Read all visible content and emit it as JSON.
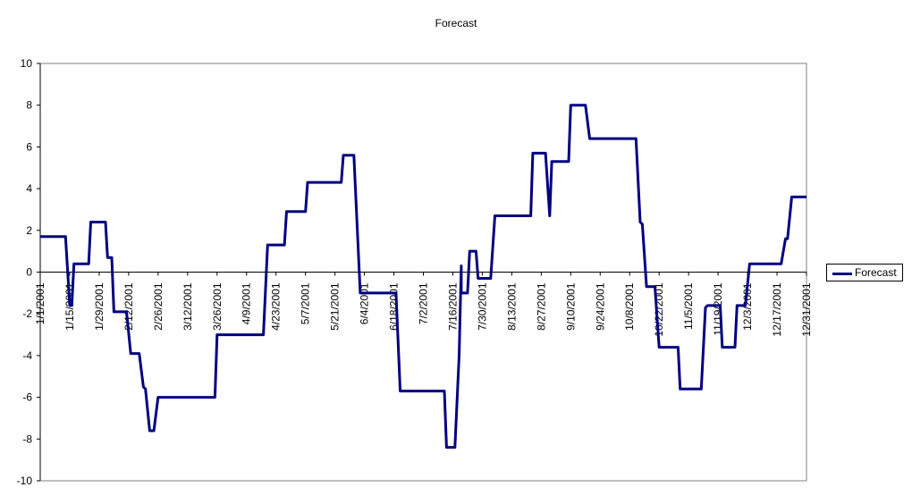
{
  "chart_data": {
    "type": "line",
    "title": "Forecast",
    "xlabel": "",
    "ylabel": "",
    "ylim": [
      -10,
      10
    ],
    "y_ticks": [
      "10",
      "8",
      "6",
      "4",
      "2",
      "0",
      "-2",
      "-4",
      "-6",
      "-8",
      "-10"
    ],
    "x_range": [
      "2001-01-01",
      "2001-12-31"
    ],
    "x_tick_labels": [
      "1/1/2001",
      "1/15/2001",
      "1/29/2001",
      "2/12/2001",
      "2/26/2001",
      "3/12/2001",
      "3/26/2001",
      "4/9/2001",
      "4/23/2001",
      "5/7/2001",
      "5/21/2001",
      "6/4/2001",
      "6/18/2001",
      "7/2/2001",
      "7/16/2001",
      "7/30/2001",
      "8/13/2001",
      "8/27/2001",
      "9/10/2001",
      "9/24/2001",
      "10/8/2001",
      "10/22/2001",
      "11/5/2001",
      "11/19/2001",
      "12/3/2001",
      "12/17/2001",
      "12/31/2001"
    ],
    "grid": false,
    "legend_position": "right",
    "colors": {
      "series": "#000080",
      "axis": "#000000",
      "plot_border": "#808080"
    },
    "series": [
      {
        "name": "Forecast",
        "points": [
          [
            "2001-01-01",
            1.7
          ],
          [
            "2001-01-13",
            1.7
          ],
          [
            "2001-01-15",
            -1.6
          ],
          [
            "2001-01-16",
            -1.6
          ],
          [
            "2001-01-17",
            0.4
          ],
          [
            "2001-01-24",
            0.4
          ],
          [
            "2001-01-25",
            2.4
          ],
          [
            "2001-02-01",
            2.4
          ],
          [
            "2001-02-02",
            0.7
          ],
          [
            "2001-02-04",
            0.7
          ],
          [
            "2001-02-05",
            -1.9
          ],
          [
            "2001-02-11",
            -1.9
          ],
          [
            "2001-02-13",
            -3.9
          ],
          [
            "2001-02-17",
            -3.9
          ],
          [
            "2001-02-19",
            -5.5
          ],
          [
            "2001-02-20",
            -5.6
          ],
          [
            "2001-02-22",
            -7.6
          ],
          [
            "2001-02-24",
            -7.6
          ],
          [
            "2001-02-26",
            -6.0
          ],
          [
            "2001-03-25",
            -6.0
          ],
          [
            "2001-03-26",
            -3.0
          ],
          [
            "2001-04-17",
            -3.0
          ],
          [
            "2001-04-19",
            1.3
          ],
          [
            "2001-04-27",
            1.3
          ],
          [
            "2001-04-28",
            2.9
          ],
          [
            "2001-05-07",
            2.9
          ],
          [
            "2001-05-08",
            4.3
          ],
          [
            "2001-05-24",
            4.3
          ],
          [
            "2001-05-25",
            5.6
          ],
          [
            "2001-05-30",
            5.6
          ],
          [
            "2001-06-02",
            -1.0
          ],
          [
            "2001-06-19",
            -1.0
          ],
          [
            "2001-06-21",
            -5.7
          ],
          [
            "2001-07-12",
            -5.7
          ],
          [
            "2001-07-13",
            -8.4
          ],
          [
            "2001-07-17",
            -8.4
          ],
          [
            "2001-07-19",
            -4.0
          ],
          [
            "2001-07-20",
            0.3
          ],
          [
            "2001-07-20",
            -1.0
          ],
          [
            "2001-07-23",
            -1.0
          ],
          [
            "2001-07-24",
            1.0
          ],
          [
            "2001-07-27",
            1.0
          ],
          [
            "2001-07-28",
            -0.3
          ],
          [
            "2001-08-03",
            -0.3
          ],
          [
            "2001-08-05",
            2.7
          ],
          [
            "2001-08-22",
            2.7
          ],
          [
            "2001-08-23",
            5.7
          ],
          [
            "2001-08-29",
            5.7
          ],
          [
            "2001-08-31",
            2.7
          ],
          [
            "2001-09-01",
            5.3
          ],
          [
            "2001-09-09",
            5.3
          ],
          [
            "2001-09-10",
            8.0
          ],
          [
            "2001-09-17",
            8.0
          ],
          [
            "2001-09-19",
            6.4
          ],
          [
            "2001-10-11",
            6.4
          ],
          [
            "2001-10-13",
            2.4
          ],
          [
            "2001-10-14",
            2.3
          ],
          [
            "2001-10-16",
            -0.7
          ],
          [
            "2001-10-20",
            -0.7
          ],
          [
            "2001-10-22",
            -3.6
          ],
          [
            "2001-10-31",
            -3.6
          ],
          [
            "2001-11-01",
            -5.6
          ],
          [
            "2001-11-11",
            -5.6
          ],
          [
            "2001-11-13",
            -1.7
          ],
          [
            "2001-11-14",
            -1.6
          ],
          [
            "2001-11-20",
            -1.6
          ],
          [
            "2001-11-21",
            -3.6
          ],
          [
            "2001-11-27",
            -3.6
          ],
          [
            "2001-11-28",
            -1.6
          ],
          [
            "2001-12-02",
            -1.6
          ],
          [
            "2001-12-04",
            0.4
          ],
          [
            "2001-12-19",
            0.4
          ],
          [
            "2001-12-21",
            1.6
          ],
          [
            "2001-12-22",
            1.6
          ],
          [
            "2001-12-24",
            3.6
          ],
          [
            "2001-12-31",
            3.6
          ]
        ]
      }
    ]
  }
}
